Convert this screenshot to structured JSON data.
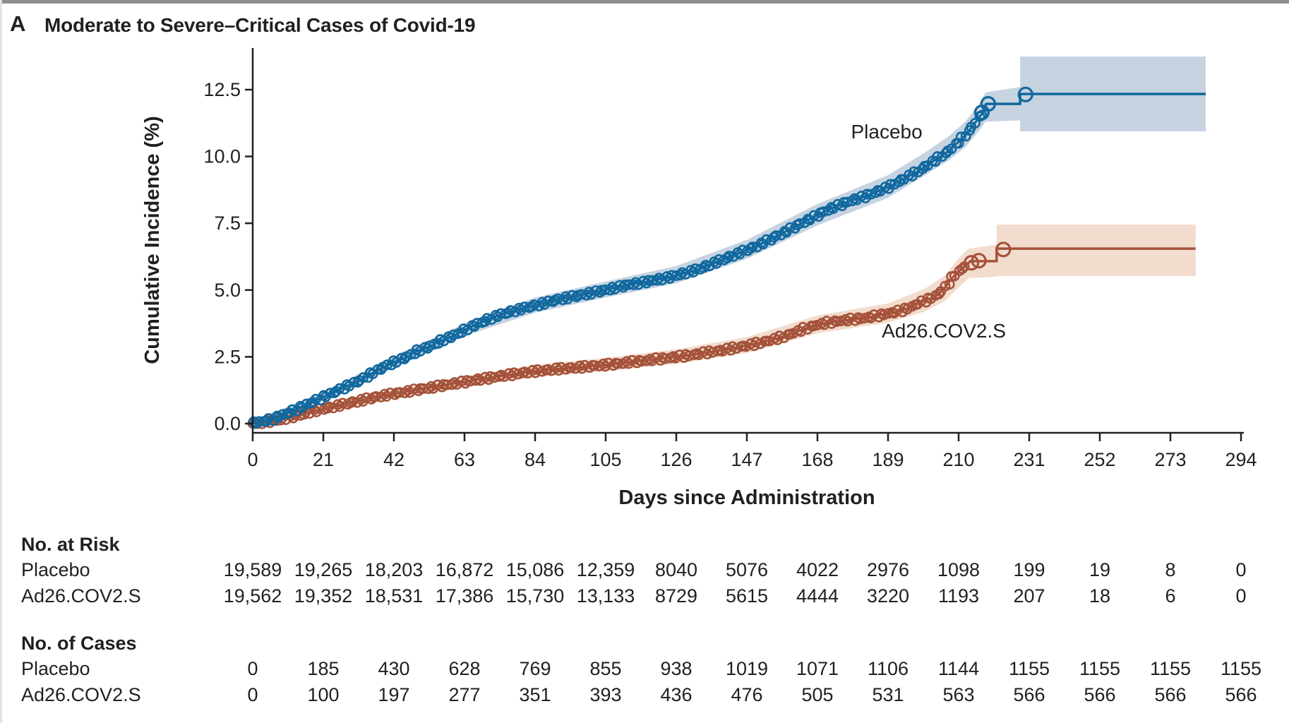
{
  "panel_label": "A",
  "title": "Moderate to Severe–Critical Cases of Covid-19",
  "colors": {
    "text": "#231f20",
    "axis": "#231f20",
    "placebo_line": "#10689e",
    "placebo_band": "#c6d3e1",
    "vaccine_line": "#a5523b",
    "vaccine_band": "#f2dcce"
  },
  "chart_data": {
    "type": "line",
    "title": "Moderate to Severe–Critical Cases of Covid-19",
    "xlabel": "Days since Administration",
    "ylabel": "Cumulative Incidence (%)",
    "x_ticks": [
      0,
      21,
      42,
      63,
      84,
      105,
      126,
      147,
      168,
      189,
      210,
      231,
      252,
      273,
      294
    ],
    "y_tick_labels": [
      "0.0",
      "2.5",
      "5.0",
      "7.5",
      "10.0",
      "12.5"
    ],
    "y_ticks": [
      0,
      2.5,
      5,
      7.5,
      10,
      12.5
    ],
    "xlim": [
      0,
      294
    ],
    "ylim": [
      0,
      13.8
    ],
    "grid": false,
    "legend_position": "inline-labels",
    "series": [
      {
        "name": "Ad26.COV2.S",
        "color": "#a5523b",
        "band_color": "#f2dcce",
        "label": {
          "day": 205.6,
          "value": 3.22
        },
        "points": [
          [
            0,
            0.01
          ],
          [
            4,
            0.06
          ],
          [
            7,
            0.12
          ],
          [
            10,
            0.2
          ],
          [
            14,
            0.32
          ],
          [
            17,
            0.43
          ],
          [
            21,
            0.55
          ],
          [
            25,
            0.66
          ],
          [
            28,
            0.75
          ],
          [
            32,
            0.86
          ],
          [
            35,
            0.95
          ],
          [
            38,
            1.03
          ],
          [
            42,
            1.12
          ],
          [
            46,
            1.2
          ],
          [
            49,
            1.27
          ],
          [
            53,
            1.35
          ],
          [
            56,
            1.42
          ],
          [
            60,
            1.5
          ],
          [
            63,
            1.56
          ],
          [
            66,
            1.63
          ],
          [
            70,
            1.7
          ],
          [
            73,
            1.77
          ],
          [
            77,
            1.84
          ],
          [
            80,
            1.9
          ],
          [
            84,
            1.96
          ],
          [
            88,
            2.01
          ],
          [
            91,
            2.05
          ],
          [
            95,
            2.09
          ],
          [
            98,
            2.12
          ],
          [
            101,
            2.16
          ],
          [
            105,
            2.2
          ],
          [
            109,
            2.25
          ],
          [
            112,
            2.3
          ],
          [
            116,
            2.35
          ],
          [
            119,
            2.4
          ],
          [
            123,
            2.45
          ],
          [
            126,
            2.5
          ],
          [
            130,
            2.56
          ],
          [
            133,
            2.62
          ],
          [
            136,
            2.68
          ],
          [
            140,
            2.75
          ],
          [
            143,
            2.83
          ],
          [
            147,
            2.92
          ],
          [
            150,
            3.0
          ],
          [
            154,
            3.12
          ],
          [
            158,
            3.26
          ],
          [
            161,
            3.4
          ],
          [
            164,
            3.55
          ],
          [
            168,
            3.7
          ],
          [
            171,
            3.78
          ],
          [
            175,
            3.85
          ],
          [
            178,
            3.9
          ],
          [
            182,
            3.95
          ],
          [
            185,
            4.02
          ],
          [
            189,
            4.12
          ],
          [
            192,
            4.2
          ],
          [
            195,
            4.32
          ],
          [
            198,
            4.5
          ],
          [
            201,
            4.65
          ],
          [
            204,
            4.85
          ],
          [
            206,
            5.1
          ],
          [
            208,
            5.45
          ],
          [
            210,
            5.7
          ],
          [
            212,
            5.9
          ]
        ],
        "band": [
          [
            0,
            0,
            0.08
          ],
          [
            21,
            0.44,
            0.68
          ],
          [
            42,
            0.98,
            1.28
          ],
          [
            63,
            1.38,
            1.76
          ],
          [
            84,
            1.74,
            2.2
          ],
          [
            105,
            1.96,
            2.46
          ],
          [
            126,
            2.24,
            2.78
          ],
          [
            147,
            2.64,
            3.24
          ],
          [
            168,
            3.38,
            4.05
          ],
          [
            189,
            3.78,
            4.5
          ],
          [
            200,
            4.2,
            5.05
          ],
          [
            206,
            4.6,
            5.55
          ],
          [
            210,
            5.1,
            6.2
          ],
          [
            213,
            5.45,
            6.55
          ],
          [
            221.3,
            5.5,
            6.7
          ],
          [
            221.31,
            5.52,
            7.45
          ],
          [
            280.5,
            5.52,
            7.45
          ]
        ],
        "tail_path": [
          [
            212,
            5.9
          ],
          [
            213.5,
            6.08
          ],
          [
            221.3,
            6.08
          ],
          [
            221.3,
            6.55
          ],
          [
            280.5,
            6.55
          ]
        ],
        "end_circles": [
          [
            213.8,
            6.02
          ],
          [
            216,
            6.1
          ],
          [
            223.3,
            6.52
          ]
        ],
        "final_value_pct": 6.5
      },
      {
        "name": "Placebo",
        "color": "#10689e",
        "band_color": "#c6d3e1",
        "label": {
          "day": 188.6,
          "value": 10.68
        },
        "points": [
          [
            0,
            0.02
          ],
          [
            3,
            0.08
          ],
          [
            6,
            0.18
          ],
          [
            9,
            0.32
          ],
          [
            12,
            0.48
          ],
          [
            15,
            0.65
          ],
          [
            18,
            0.82
          ],
          [
            21,
            1.0
          ],
          [
            25,
            1.22
          ],
          [
            28,
            1.4
          ],
          [
            32,
            1.62
          ],
          [
            35,
            1.85
          ],
          [
            38,
            2.05
          ],
          [
            42,
            2.3
          ],
          [
            46,
            2.5
          ],
          [
            49,
            2.72
          ],
          [
            53,
            2.9
          ],
          [
            56,
            3.1
          ],
          [
            60,
            3.3
          ],
          [
            63,
            3.5
          ],
          [
            66,
            3.68
          ],
          [
            70,
            3.9
          ],
          [
            73,
            4.05
          ],
          [
            77,
            4.2
          ],
          [
            80,
            4.3
          ],
          [
            84,
            4.42
          ],
          [
            88,
            4.55
          ],
          [
            91,
            4.65
          ],
          [
            95,
            4.75
          ],
          [
            98,
            4.82
          ],
          [
            101,
            4.9
          ],
          [
            105,
            5.0
          ],
          [
            109,
            5.12
          ],
          [
            112,
            5.2
          ],
          [
            116,
            5.28
          ],
          [
            119,
            5.36
          ],
          [
            123,
            5.45
          ],
          [
            126,
            5.55
          ],
          [
            130,
            5.68
          ],
          [
            133,
            5.8
          ],
          [
            136,
            5.95
          ],
          [
            140,
            6.15
          ],
          [
            143,
            6.3
          ],
          [
            147,
            6.5
          ],
          [
            150,
            6.65
          ],
          [
            154,
            6.9
          ],
          [
            158,
            7.15
          ],
          [
            161,
            7.35
          ],
          [
            164,
            7.55
          ],
          [
            168,
            7.8
          ],
          [
            171,
            8.0
          ],
          [
            175,
            8.2
          ],
          [
            178,
            8.35
          ],
          [
            182,
            8.5
          ],
          [
            185,
            8.65
          ],
          [
            189,
            8.85
          ],
          [
            192,
            9.05
          ],
          [
            195,
            9.25
          ],
          [
            198,
            9.45
          ],
          [
            201,
            9.7
          ],
          [
            204,
            9.95
          ],
          [
            207,
            10.2
          ],
          [
            210,
            10.55
          ],
          [
            212,
            10.8
          ],
          [
            214,
            11.1
          ],
          [
            216,
            11.45
          ],
          [
            217,
            11.6
          ]
        ],
        "band": [
          [
            0,
            0,
            0.1
          ],
          [
            21,
            0.85,
            1.18
          ],
          [
            42,
            2.1,
            2.52
          ],
          [
            63,
            3.28,
            3.75
          ],
          [
            84,
            4.15,
            4.72
          ],
          [
            105,
            4.72,
            5.32
          ],
          [
            126,
            5.25,
            5.9
          ],
          [
            147,
            6.17,
            6.88
          ],
          [
            168,
            7.42,
            8.22
          ],
          [
            189,
            8.45,
            9.3
          ],
          [
            200,
            9.3,
            10.15
          ],
          [
            207,
            9.85,
            10.75
          ],
          [
            212,
            10.35,
            11.3
          ],
          [
            216,
            10.95,
            11.95
          ],
          [
            218,
            11.3,
            12.4
          ],
          [
            228.3,
            11.35,
            12.6
          ],
          [
            228.31,
            10.94,
            13.74
          ],
          [
            283.5,
            10.94,
            13.74
          ]
        ],
        "tail_path": [
          [
            217,
            11.6
          ],
          [
            218.2,
            11.97
          ],
          [
            228.3,
            11.97
          ],
          [
            228.3,
            12.34
          ],
          [
            283.5,
            12.34
          ]
        ],
        "end_circles": [
          [
            216.9,
            11.65
          ],
          [
            218.8,
            11.97
          ],
          [
            229.9,
            12.32
          ]
        ],
        "final_value_pct": 12.3
      }
    ]
  },
  "risk_table": {
    "heading": "No. at Risk",
    "rows": [
      {
        "label": "Placebo",
        "values": [
          "19,589",
          "19,265",
          "18,203",
          "16,872",
          "15,086",
          "12,359",
          "8040",
          "5076",
          "4022",
          "2976",
          "1098",
          "199",
          "19",
          "8",
          "0"
        ]
      },
      {
        "label": "Ad26.COV2.S",
        "values": [
          "19,562",
          "19,352",
          "18,531",
          "17,386",
          "15,730",
          "13,133",
          "8729",
          "5615",
          "4444",
          "3220",
          "1193",
          "207",
          "18",
          "6",
          "0"
        ]
      }
    ]
  },
  "cases_table": {
    "heading": "No. of Cases",
    "rows": [
      {
        "label": "Placebo",
        "values": [
          "0",
          "185",
          "430",
          "628",
          "769",
          "855",
          "938",
          "1019",
          "1071",
          "1106",
          "1144",
          "1155",
          "1155",
          "1155",
          "1155"
        ]
      },
      {
        "label": "Ad26.COV2.S",
        "values": [
          "0",
          "100",
          "197",
          "277",
          "351",
          "393",
          "436",
          "476",
          "505",
          "531",
          "563",
          "566",
          "566",
          "566",
          "566"
        ]
      }
    ]
  }
}
